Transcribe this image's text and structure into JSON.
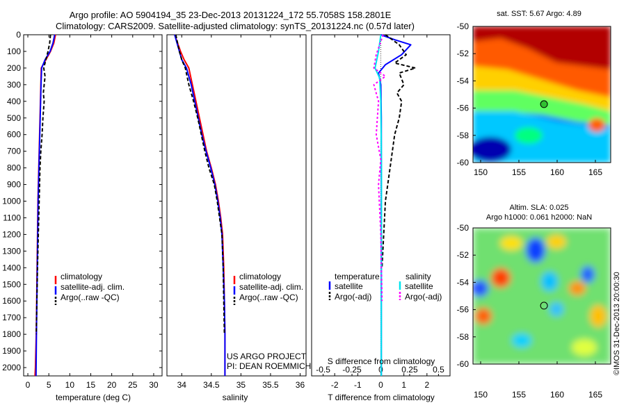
{
  "header": {
    "title_line1": "Argo profile: AO 5904194_35 23-Dec-2013 20131224_172 55.7058S 158.2801E",
    "title_line2": "Climatology: CARS2009. Satellite-adjusted climatology: synTS_20131224.nc (0.57d later)"
  },
  "colors": {
    "climatology": "#ff0000",
    "satellite": "#0000ff",
    "argo": "#000000",
    "sat_salinity": "#00e5ee",
    "argo_salinity_adj": "#ff00ff"
  },
  "chart_data": [
    {
      "id": "temperature",
      "type": "line",
      "xlabel": "temperature (deg C)",
      "ylabel": "",
      "xlim": [
        -1,
        32
      ],
      "ylim": [
        2050,
        0
      ],
      "xticks": [
        0,
        5,
        10,
        15,
        20,
        25,
        30
      ],
      "xtick_labels": [
        "0",
        "5",
        "10",
        "15",
        "20",
        "25",
        "30"
      ],
      "yticks": [
        0,
        100,
        200,
        300,
        400,
        500,
        600,
        700,
        800,
        900,
        1000,
        1100,
        1200,
        1300,
        1400,
        1500,
        1600,
        1700,
        1800,
        1900,
        2000
      ],
      "ytick_labels": [
        "0",
        "100",
        "200",
        "300",
        "400",
        "500",
        "600",
        "700",
        "800",
        "900",
        "1000",
        "1100",
        "1200",
        "1300",
        "1400",
        "1500",
        "1600",
        "1700",
        "1800",
        "1900",
        "2000"
      ],
      "legend": [
        "climatology",
        "satellite-adj. clim.",
        "Argo(..raw -QC)"
      ],
      "series": [
        {
          "name": "climatology",
          "color": "#ff0000",
          "dash": "",
          "x": [
            6.6,
            6.2,
            5.4,
            4.3,
            3.2,
            3.1,
            3.0,
            2.9,
            2.8,
            2.7,
            2.6,
            2.5,
            2.4,
            2.3,
            2.2,
            2.1,
            2.0,
            1.9,
            1.8,
            1.7
          ],
          "y": [
            0,
            50,
            100,
            150,
            200,
            300,
            400,
            500,
            600,
            700,
            800,
            900,
            1000,
            1200,
            1400,
            1600,
            1800,
            1900,
            2000,
            2050
          ]
        },
        {
          "name": "satellite-adj. clim.",
          "color": "#0000ff",
          "dash": "",
          "x": [
            6.4,
            6.0,
            5.3,
            4.1,
            3.3,
            3.15,
            3.05,
            2.95,
            2.85,
            2.75,
            2.65,
            2.55,
            2.45,
            2.35,
            2.25,
            2.15,
            2.05,
            1.95
          ],
          "y": [
            0,
            50,
            100,
            150,
            200,
            300,
            400,
            500,
            600,
            700,
            800,
            900,
            1000,
            1200,
            1400,
            1600,
            1800,
            2050
          ]
        },
        {
          "name": "Argo(..raw -QC)",
          "color": "#000000",
          "dash": "5,3",
          "x": [
            5.4,
            5.2,
            4.8,
            4.3,
            3.8,
            4.1,
            3.9,
            3.7,
            3.9,
            3.6,
            3.4,
            3.1,
            2.9,
            2.7,
            2.5,
            2.3,
            2.15,
            2.0
          ],
          "y": [
            0,
            50,
            100,
            150,
            200,
            250,
            300,
            350,
            400,
            500,
            600,
            700,
            800,
            1000,
            1200,
            1400,
            1600,
            1800
          ]
        }
      ]
    },
    {
      "id": "salinity",
      "type": "line",
      "xlabel": "salinity",
      "ylabel": "",
      "xlim": [
        33.75,
        36.1
      ],
      "ylim": [
        2050,
        0
      ],
      "xticks": [
        34,
        34.5,
        35,
        35.5,
        36
      ],
      "xtick_labels": [
        "34",
        "34.5",
        "35",
        "35.5",
        "36"
      ],
      "legend": [
        "climatology",
        "satellite-adj. clim.",
        "Argo(..raw -QC)"
      ],
      "annotation": [
        "US ARGO PROJECT",
        "PI: DEAN ROEMMICH"
      ],
      "series": [
        {
          "name": "climatology",
          "color": "#ff0000",
          "dash": "",
          "x": [
            33.88,
            33.93,
            33.98,
            34.04,
            34.12,
            34.18,
            34.24,
            34.3,
            34.36,
            34.42,
            34.5,
            34.57,
            34.62,
            34.66,
            34.69,
            34.71,
            34.72,
            34.73,
            34.73
          ],
          "y": [
            0,
            50,
            100,
            150,
            200,
            300,
            400,
            500,
            600,
            700,
            800,
            900,
            1000,
            1100,
            1200,
            1400,
            1600,
            1800,
            2050
          ]
        },
        {
          "name": "satellite-adj. clim.",
          "color": "#0000ff",
          "dash": "",
          "x": [
            33.88,
            33.92,
            33.96,
            34.0,
            34.08,
            34.16,
            34.22,
            34.28,
            34.34,
            34.41,
            34.49,
            34.56,
            34.61,
            34.65,
            34.68,
            34.7,
            34.72,
            34.73,
            34.73
          ],
          "y": [
            0,
            50,
            100,
            150,
            200,
            300,
            400,
            500,
            600,
            700,
            800,
            900,
            1000,
            1100,
            1200,
            1400,
            1600,
            1800,
            2050
          ]
        },
        {
          "name": "Argo(..raw -QC)",
          "color": "#000000",
          "dash": "5,3",
          "x": [
            33.9,
            33.93,
            33.96,
            34.0,
            34.06,
            34.12,
            34.2,
            34.27,
            34.33,
            34.39,
            34.46,
            34.55,
            34.6,
            34.64,
            34.68,
            34.7,
            34.71,
            34.72
          ],
          "y": [
            0,
            50,
            100,
            150,
            200,
            300,
            400,
            500,
            600,
            700,
            800,
            900,
            1000,
            1100,
            1200,
            1400,
            1600,
            1800
          ]
        }
      ]
    },
    {
      "id": "difference",
      "type": "line",
      "xlabel": "T difference from climatology",
      "top_axis_label": "S difference from climatology",
      "xlim": [
        -3,
        3
      ],
      "ylim": [
        2050,
        0
      ],
      "xticks": [
        -2,
        -1,
        0,
        1,
        2
      ],
      "xtick_labels": [
        "-2",
        "-1",
        "0",
        "1",
        "2"
      ],
      "top_ticks": [
        -2.5,
        -1.25,
        0,
        1.25,
        2.5
      ],
      "top_tick_labels": [
        "-0.5",
        "-0.25",
        "0",
        "0.25",
        "0.5"
      ],
      "legend_headers": [
        "temperature",
        "salinity"
      ],
      "legend": [
        "satellite",
        "Argo(-adj)",
        "satellite",
        "Argo(-adj)"
      ],
      "series": [
        {
          "name": "satellite",
          "group": "temperature",
          "color": "#0000ff",
          "dash": "",
          "x": [
            0.0,
            0.6,
            1.3,
            0.9,
            0.2,
            -0.1,
            0.0,
            0.02,
            0.02,
            0.02,
            0.02,
            0.02,
            0.02
          ],
          "y": [
            0,
            30,
            60,
            120,
            180,
            230,
            300,
            500,
            800,
            1000,
            1400,
            1800,
            2050
          ]
        },
        {
          "name": "Argo(-adj)",
          "group": "temperature",
          "color": "#000000",
          "dash": "5,3",
          "x": [
            0.2,
            0.8,
            1.1,
            0.6,
            1.5,
            0.8,
            1.0,
            0.7,
            0.9,
            0.8,
            0.6,
            0.4,
            0.2,
            0.05
          ],
          "y": [
            0,
            60,
            120,
            170,
            200,
            230,
            300,
            350,
            400,
            500,
            600,
            800,
            1000,
            1400
          ]
        },
        {
          "name": "satellite",
          "group": "salinity",
          "color": "#00e5ee",
          "dash": "",
          "x": [
            0.0,
            -0.1,
            -0.25,
            -0.05,
            0.0,
            0.03,
            0.03,
            0.02,
            0.02
          ],
          "y": [
            0,
            100,
            200,
            260,
            400,
            800,
            1200,
            1600,
            2050
          ]
        },
        {
          "name": "Argo(-adj)",
          "group": "salinity",
          "color": "#ff00ff",
          "dash": "3,3",
          "x": [
            0.1,
            -0.2,
            -0.3,
            0.2,
            -0.3,
            -0.1,
            -0.2,
            0.0,
            -0.1,
            0.0,
            0.05
          ],
          "y": [
            0,
            120,
            200,
            250,
            300,
            400,
            600,
            750,
            900,
            1200,
            1600
          ]
        }
      ]
    },
    {
      "id": "sst_map",
      "type": "heatmap",
      "title": "sat. SST: 5.67  Argo: 4.89",
      "xlim": [
        149,
        167
      ],
      "ylim": [
        -60,
        -50
      ],
      "xticks": [
        150,
        155,
        160,
        165
      ],
      "xtick_labels": [
        "150",
        "155",
        "160",
        "165"
      ],
      "yticks": [
        -50,
        -52,
        -54,
        -56,
        -58,
        -60
      ],
      "ytick_labels": [
        "-50",
        "-52",
        "-54",
        "-56",
        "-58",
        "-60"
      ],
      "marker": [
        158.28,
        -55.71
      ],
      "colormap": [
        "#000080",
        "#0000ff",
        "#0080ff",
        "#00ffff",
        "#80ff80",
        "#ffff00",
        "#ff8000",
        "#ff0000",
        "#800000"
      ],
      "data_mask_below": -60
    },
    {
      "id": "sla_map",
      "type": "heatmap",
      "title": "Altim. SLA: 0.025",
      "subtitle": "Argo h1000: 0.061 h2000: NaN",
      "xlim": [
        149,
        167
      ],
      "ylim": [
        -60,
        -50
      ],
      "xticks": [
        150,
        155,
        160,
        165
      ],
      "xtick_labels": [
        "150",
        "155",
        "160",
        "165"
      ],
      "yticks": [
        -50,
        -52,
        -54,
        -56,
        -58,
        -60
      ],
      "ytick_labels": [
        "-50",
        "-52",
        "-54",
        "-56",
        "-58",
        "-60"
      ],
      "marker": [
        158.28,
        -55.71
      ],
      "colormap": [
        "#000080",
        "#0000ff",
        "#0080ff",
        "#00ffff",
        "#80ff80",
        "#ffff00",
        "#ff8000",
        "#ff0000",
        "#800000"
      ]
    }
  ],
  "footer": {
    "stamp": "©IMOS 31-Dec-2013 20:00:30"
  }
}
